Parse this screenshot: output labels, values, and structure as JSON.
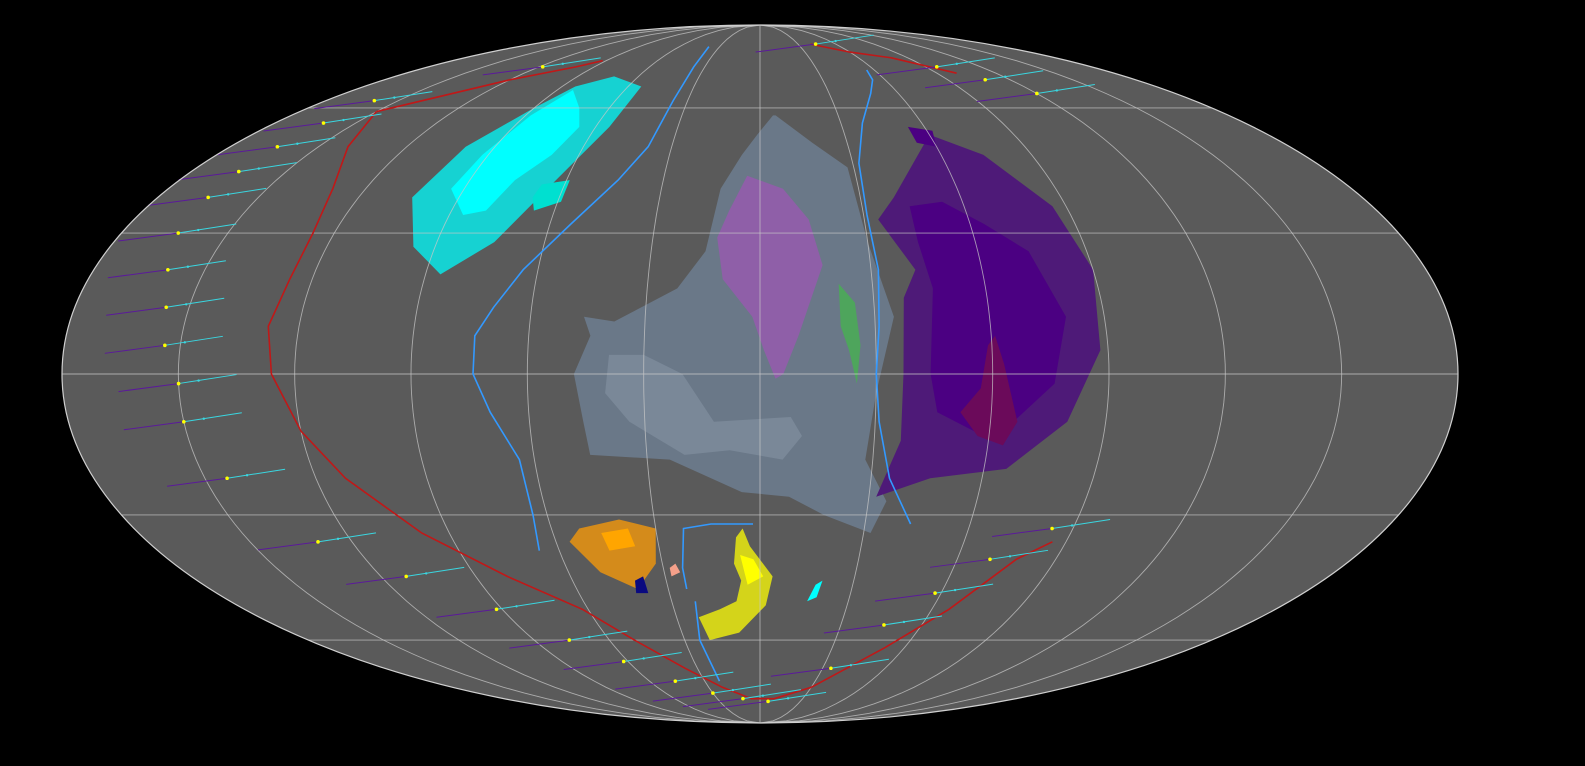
{
  "map": {
    "projection": "mollweide",
    "ocean_color": "#5a5a5a",
    "background_color": "#000000",
    "graticule": {
      "meridian_step_deg": 30,
      "parallel_latitudes_deg": [
        -60,
        -30,
        0,
        30,
        60
      ],
      "color": "#c8c8c8"
    }
  },
  "continents": [
    {
      "name": "cyan-continent-outer",
      "color": "#16d2d2",
      "points": [
        [
          -84,
          66
        ],
        [
          -72,
          69
        ],
        [
          -54,
          66
        ],
        [
          -55,
          55
        ],
        [
          -64,
          41
        ],
        [
          -74,
          28
        ],
        [
          -86,
          21
        ],
        [
          -96,
          27
        ],
        [
          -104,
          38
        ],
        [
          -100,
          50
        ],
        [
          -90,
          60
        ]
      ]
    },
    {
      "name": "cyan-continent-inner",
      "color": "#00ffff",
      "points": [
        [
          -83,
          65
        ],
        [
          -72,
          60
        ],
        [
          -66,
          55
        ],
        [
          -69,
          48
        ],
        [
          -76,
          42
        ],
        [
          -80,
          35
        ],
        [
          -86,
          34
        ],
        [
          -94,
          40
        ],
        [
          -92,
          48
        ],
        [
          -88,
          58
        ]
      ]
    },
    {
      "name": "cyan-continent-lake",
      "color": "#00e0d0",
      "points": [
        [
          -67,
          41
        ],
        [
          -59,
          42
        ],
        [
          -59,
          37
        ],
        [
          -66,
          35
        ],
        [
          -68,
          38
        ]
      ]
    },
    {
      "name": "grey-continent",
      "color": "#6a7888",
      "points": [
        [
          6,
          58
        ],
        [
          18,
          51
        ],
        [
          28,
          45
        ],
        [
          30,
          28
        ],
        [
          35,
          12
        ],
        [
          30,
          -4
        ],
        [
          28,
          -18
        ],
        [
          35,
          -27
        ],
        [
          32,
          -34
        ],
        [
          18,
          -30
        ],
        [
          8,
          -26
        ],
        [
          -5,
          -25
        ],
        [
          -24,
          -18
        ],
        [
          -45,
          -17
        ],
        [
          -46,
          -10
        ],
        [
          -48,
          0
        ],
        [
          -44,
          8
        ],
        [
          -46,
          12
        ],
        [
          -38,
          11
        ],
        [
          -22,
          18
        ],
        [
          -15,
          26
        ],
        [
          -12,
          40
        ],
        [
          -6,
          48
        ],
        [
          -1,
          53
        ],
        [
          5,
          58
        ]
      ]
    },
    {
      "name": "grey-continent-inner",
      "color": "#7a8898",
      "points": [
        [
          -39,
          4
        ],
        [
          -30,
          4
        ],
        [
          -20,
          0
        ],
        [
          -12,
          -10
        ],
        [
          8,
          -9
        ],
        [
          11,
          -13
        ],
        [
          6,
          -18
        ],
        [
          -8,
          -16
        ],
        [
          -20,
          -17
        ],
        [
          -34,
          -10
        ],
        [
          -40,
          -4
        ]
      ]
    },
    {
      "name": "violet-continent",
      "color": "#8f5fa8",
      "points": [
        [
          -4,
          43
        ],
        [
          7,
          40
        ],
        [
          14,
          33
        ],
        [
          17,
          23
        ],
        [
          10,
          8
        ],
        [
          6,
          0
        ],
        [
          4,
          -1
        ],
        [
          1,
          5
        ],
        [
          -2,
          12
        ],
        [
          -10,
          20
        ],
        [
          -12,
          29
        ],
        [
          -9,
          35
        ]
      ]
    },
    {
      "name": "green-continent",
      "color": "#4ea55c",
      "points": [
        [
          21,
          19
        ],
        [
          25,
          15
        ],
        [
          26,
          6
        ],
        [
          25,
          -2
        ],
        [
          23,
          5
        ],
        [
          21,
          10
        ]
      ]
    },
    {
      "name": "purple-continent-outer",
      "color": "#4e1a78",
      "points": [
        [
          60,
          53
        ],
        [
          74,
          48
        ],
        [
          86,
          36
        ],
        [
          90,
          22
        ],
        [
          88,
          5
        ],
        [
          80,
          -10
        ],
        [
          66,
          -20
        ],
        [
          46,
          -22
        ],
        [
          32,
          -26
        ],
        [
          37,
          -14
        ],
        [
          37,
          0
        ],
        [
          38,
          16
        ],
        [
          42,
          22
        ],
        [
          34,
          33
        ],
        [
          40,
          38
        ]
      ]
    },
    {
      "name": "purple-continent-inner",
      "color": "#4b0082",
      "points": [
        [
          44,
          36
        ],
        [
          54,
          37
        ],
        [
          64,
          32
        ],
        [
          74,
          26
        ],
        [
          80,
          12
        ],
        [
          76,
          -2
        ],
        [
          66,
          -10
        ],
        [
          56,
          -12
        ],
        [
          46,
          -8
        ],
        [
          44,
          0
        ],
        [
          46,
          18
        ],
        [
          44,
          28
        ]
      ]
    },
    {
      "name": "purple-continent-notch",
      "color": "#4b0082",
      "points": [
        [
          54,
          55
        ],
        [
          62,
          54
        ],
        [
          60,
          50
        ],
        [
          54,
          51
        ]
      ]
    },
    {
      "name": "magenta-continent",
      "color": "#6b0a5a",
      "points": [
        [
          61,
          8
        ],
        [
          63,
          2
        ],
        [
          67,
          -10
        ],
        [
          64,
          -15
        ],
        [
          57,
          -13
        ],
        [
          52,
          -8
        ],
        [
          57,
          -3
        ],
        [
          59,
          6
        ]
      ]
    },
    {
      "name": "orange-continent",
      "color": "#d48b1b",
      "points": [
        [
          -52,
          -33
        ],
        [
          -40,
          -31
        ],
        [
          -30,
          -33
        ],
        [
          -32,
          -41
        ],
        [
          -40,
          -47
        ],
        [
          -50,
          -43
        ],
        [
          -56,
          -36
        ]
      ]
    },
    {
      "name": "orange-lake",
      "color": "#ffa500",
      "points": [
        [
          -46,
          -34
        ],
        [
          -38,
          -33
        ],
        [
          -37,
          -37
        ],
        [
          -45,
          -38
        ]
      ]
    },
    {
      "name": "yellow-continent",
      "color": "#d4d41a",
      "points": [
        [
          -5,
          -33
        ],
        [
          -3,
          -37
        ],
        [
          4,
          -44
        ],
        [
          2,
          -51
        ],
        [
          -8,
          -58
        ],
        [
          -20,
          -60
        ],
        [
          -22,
          -54
        ],
        [
          -14,
          -52
        ],
        [
          -8,
          -50
        ],
        [
          -6,
          -45
        ],
        [
          -8,
          -41
        ],
        [
          -7,
          -35
        ]
      ]
    },
    {
      "name": "yellow-continent-inner",
      "color": "#ffff00",
      "points": [
        [
          -6,
          -39
        ],
        [
          -2,
          -40
        ],
        [
          1,
          -44
        ],
        [
          -4,
          -46
        ]
      ]
    },
    {
      "name": "salmon-island",
      "color": "#f5a08a",
      "points": [
        [
          -28,
          -42
        ],
        [
          -26,
          -41
        ],
        [
          -25,
          -43
        ],
        [
          -28,
          -44
        ]
      ]
    },
    {
      "name": "navy-island",
      "color": "#0a0a80",
      "points": [
        [
          -40,
          -45
        ],
        [
          -37,
          -44
        ],
        [
          -37,
          -48
        ],
        [
          -41,
          -48
        ]
      ]
    },
    {
      "name": "cyan-island",
      "color": "#00ffff",
      "points": [
        [
          18,
          -46
        ],
        [
          20,
          -45
        ],
        [
          19,
          -49
        ],
        [
          16,
          -50
        ]
      ]
    }
  ],
  "plate_boundaries": [
    {
      "name": "subduction-zone-west",
      "color": "#c01818",
      "points": [
        [
          -150,
          59
        ],
        [
          -120,
          68
        ],
        [
          -100,
          72
        ],
        [
          -92,
          74
        ]
      ]
    },
    {
      "name": "subduction-zone-west-arc",
      "color": "#c01818",
      "points": [
        [
          -150,
          59
        ],
        [
          -140,
          50
        ],
        [
          -130,
          40
        ],
        [
          -126,
          30
        ],
        [
          -126,
          20
        ],
        [
          -128,
          10
        ],
        [
          -126,
          0
        ],
        [
          -120,
          -12
        ],
        [
          -112,
          -22
        ],
        [
          -98,
          -34
        ],
        [
          -80,
          -44
        ],
        [
          -62,
          -52
        ],
        [
          -50,
          -60
        ],
        [
          -36,
          -68
        ],
        [
          -22,
          -74
        ],
        [
          -6,
          -78
        ],
        [
          10,
          -78
        ],
        [
          30,
          -74
        ]
      ]
    },
    {
      "name": "subduction-zone-east",
      "color": "#c01818",
      "points": [
        [
          30,
          -74
        ],
        [
          52,
          -62
        ],
        [
          66,
          -52
        ],
        [
          78,
          -40
        ],
        [
          86,
          -36
        ]
      ]
    },
    {
      "name": "subduction-zone-north",
      "color": "#c01818",
      "points": [
        [
          40,
          80
        ],
        [
          60,
          77
        ],
        [
          80,
          75
        ],
        [
          100,
          70
        ]
      ]
    },
    {
      "name": "ridge-west",
      "color": "#3399ff",
      "points": [
        [
          -38,
          79
        ],
        [
          -36,
          72
        ],
        [
          -36,
          62
        ],
        [
          -38,
          50
        ],
        [
          -44,
          42
        ],
        [
          -54,
          32
        ],
        [
          -64,
          22
        ],
        [
          -70,
          14
        ],
        [
          -74,
          8
        ],
        [
          -74,
          0
        ],
        [
          -70,
          -8
        ],
        [
          -64,
          -18
        ],
        [
          -64,
          -30
        ],
        [
          -66,
          -38
        ]
      ]
    },
    {
      "name": "ridge-south",
      "color": "#3399ff",
      "points": [
        [
          -22,
          -50
        ],
        [
          -24,
          -60
        ],
        [
          -22,
          -72
        ]
      ]
    },
    {
      "name": "ridge-center",
      "color": "#3399ff",
      "points": [
        [
          -24,
          -47
        ],
        [
          -24,
          -42
        ],
        [
          -22,
          -33
        ],
        [
          -14,
          -32
        ],
        [
          -2,
          -32
        ]
      ]
    },
    {
      "name": "ridge-east",
      "color": "#3399ff",
      "points": [
        [
          56,
          71
        ],
        [
          54,
          68
        ],
        [
          48,
          64
        ],
        [
          38,
          56
        ],
        [
          32,
          46
        ],
        [
          31,
          34
        ],
        [
          32,
          22
        ],
        [
          31,
          10
        ],
        [
          30,
          0
        ],
        [
          31,
          -10
        ],
        [
          35,
          -22
        ],
        [
          43,
          -32
        ]
      ]
    }
  ],
  "velocity_vectors": [
    {
      "lon": -160,
      "lat": 62
    },
    {
      "lon": -162,
      "lat": 56
    },
    {
      "lon": -164,
      "lat": 50
    },
    {
      "lon": -165,
      "lat": 44
    },
    {
      "lon": -165,
      "lat": 38
    },
    {
      "lon": -164,
      "lat": 30
    },
    {
      "lon": -160,
      "lat": 22
    },
    {
      "lon": -156,
      "lat": 14
    },
    {
      "lon": -154,
      "lat": 6
    },
    {
      "lon": -150,
      "lat": -2
    },
    {
      "lon": -150,
      "lat": -10
    },
    {
      "lon": -144,
      "lat": -22
    },
    {
      "lon": -130,
      "lat": -36
    },
    {
      "lon": -112,
      "lat": -44
    },
    {
      "lon": -92,
      "lat": -52
    },
    {
      "lon": -76,
      "lat": -60
    },
    {
      "lon": -62,
      "lat": -66
    },
    {
      "lon": -46,
      "lat": -72
    },
    {
      "lon": -30,
      "lat": -76
    },
    {
      "lon": -12,
      "lat": -78
    },
    {
      "lon": 6,
      "lat": -79
    },
    {
      "lon": 34,
      "lat": -68
    },
    {
      "lon": 46,
      "lat": -56
    },
    {
      "lon": 58,
      "lat": -48
    },
    {
      "lon": 70,
      "lat": -40
    },
    {
      "lon": 84,
      "lat": -33
    },
    {
      "lon": 96,
      "lat": 72
    },
    {
      "lon": 108,
      "lat": 68
    },
    {
      "lon": 120,
      "lat": 64
    },
    {
      "lon": -118,
      "lat": 72
    },
    {
      "lon": 44,
      "lat": 80
    }
  ],
  "vector_colors": {
    "head": "#3ad6e0",
    "tail": "#5a1a9a",
    "dot": "#ffff00"
  }
}
